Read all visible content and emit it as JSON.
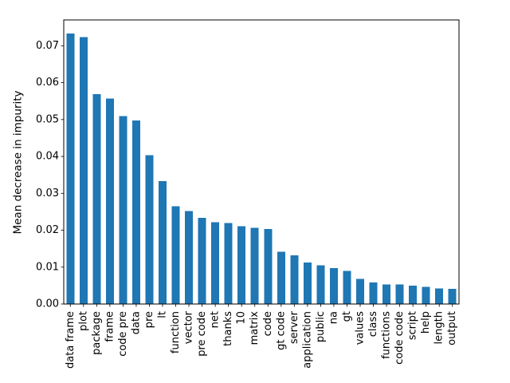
{
  "chart_data": {
    "type": "bar",
    "title": "",
    "xlabel": "",
    "ylabel": "Mean decrease in impurity",
    "categories": [
      "data frame",
      "plot",
      "package",
      "frame",
      "code pre",
      "data",
      "pre",
      "lt",
      "function",
      "vector",
      "pre code",
      "net",
      "thanks",
      "10",
      "matrix",
      "code",
      "gt code",
      "server",
      "application",
      "public",
      "na",
      "gt",
      "values",
      "class",
      "functions",
      "code code",
      "script",
      "help",
      "length",
      "output"
    ],
    "values": [
      0.0733,
      0.0723,
      0.0569,
      0.0557,
      0.0509,
      0.0498,
      0.0403,
      0.0333,
      0.0265,
      0.0252,
      0.0234,
      0.0222,
      0.022,
      0.0211,
      0.0207,
      0.0203,
      0.0142,
      0.0132,
      0.0113,
      0.0105,
      0.0097,
      0.009,
      0.0068,
      0.0058,
      0.0053,
      0.0053,
      0.005,
      0.0046,
      0.0042,
      0.0041
    ],
    "ylim": [
      0,
      0.077
    ],
    "ytick_values": [
      0.0,
      0.01,
      0.02,
      0.03,
      0.04,
      0.05,
      0.06,
      0.07
    ],
    "ytick_labels": [
      "0.00",
      "0.01",
      "0.02",
      "0.03",
      "0.04",
      "0.05",
      "0.06",
      "0.07"
    ],
    "xtick_rotation": 90,
    "grid": false,
    "legend": false,
    "bar_color": "#1f77b4",
    "axis_color": "#000000",
    "text_color": "#000000",
    "background_color": "#ffffff"
  }
}
